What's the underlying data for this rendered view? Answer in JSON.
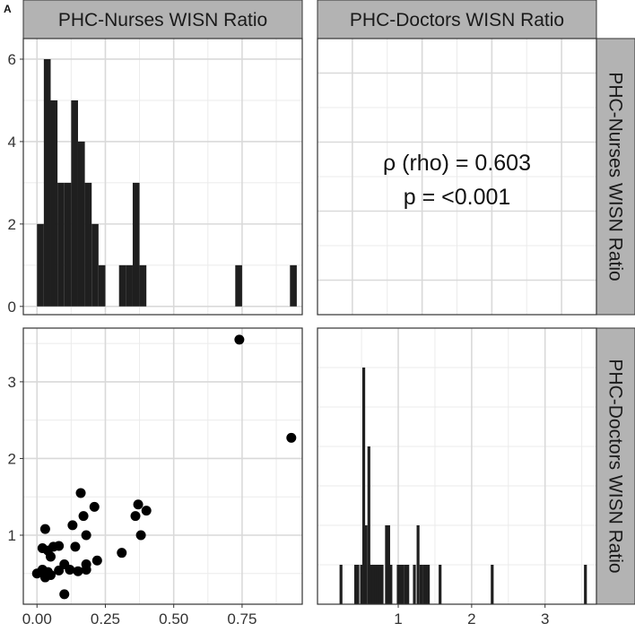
{
  "panel_label": "A",
  "strips": {
    "col1": "PHC-Nurses WISN Ratio",
    "col2": "PHC-Doctors WISN Ratio",
    "row1": "PHC-Nurses WISN Ratio",
    "row2": "PHC-Doctors WISN Ratio"
  },
  "annotation": {
    "rho_label": "ρ (rho) =  0.603",
    "p_label": "p =  <0.001"
  },
  "colors": {
    "bar": "#1f1f1f",
    "point": "#000000",
    "strip_fill": "#b3b3b3",
    "grid": "#d9d9d9",
    "border": "#333333"
  },
  "chart_data": [
    {
      "panel": "top-left",
      "type": "bar",
      "x_ticks": [
        "0.00",
        "0.25",
        "0.50",
        "0.75"
      ],
      "y_ticks": [
        "0",
        "2",
        "4",
        "6"
      ],
      "xlim": [
        -0.05,
        0.97
      ],
      "ylim": [
        -0.2,
        6.5
      ],
      "bins": [
        {
          "x0": 0.0,
          "x1": 0.025,
          "count": 2
        },
        {
          "x0": 0.025,
          "x1": 0.05,
          "count": 6
        },
        {
          "x0": 0.05,
          "x1": 0.075,
          "count": 5
        },
        {
          "x0": 0.075,
          "x1": 0.1,
          "count": 3
        },
        {
          "x0": 0.1,
          "x1": 0.125,
          "count": 3
        },
        {
          "x0": 0.125,
          "x1": 0.15,
          "count": 5
        },
        {
          "x0": 0.15,
          "x1": 0.175,
          "count": 4
        },
        {
          "x0": 0.175,
          "x1": 0.2,
          "count": 3
        },
        {
          "x0": 0.2,
          "x1": 0.225,
          "count": 2
        },
        {
          "x0": 0.225,
          "x1": 0.25,
          "count": 1
        },
        {
          "x0": 0.25,
          "x1": 0.275,
          "count": 0
        },
        {
          "x0": 0.275,
          "x1": 0.3,
          "count": 0
        },
        {
          "x0": 0.3,
          "x1": 0.325,
          "count": 1
        },
        {
          "x0": 0.325,
          "x1": 0.35,
          "count": 1
        },
        {
          "x0": 0.35,
          "x1": 0.375,
          "count": 3
        },
        {
          "x0": 0.375,
          "x1": 0.4,
          "count": 1
        },
        {
          "x0": 0.725,
          "x1": 0.75,
          "count": 1
        },
        {
          "x0": 0.925,
          "x1": 0.95,
          "count": 1
        }
      ]
    },
    {
      "panel": "top-right",
      "type": "table",
      "rho": 0.603,
      "p": "<0.001"
    },
    {
      "panel": "bottom-left",
      "type": "scatter",
      "xlabel": "PHC-Nurses WISN Ratio",
      "ylabel": "PHC-Doctors WISN Ratio",
      "x_ticks": [
        "0.00",
        "0.25",
        "0.50",
        "0.75"
      ],
      "y_ticks": [
        "1",
        "2",
        "3"
      ],
      "xlim": [
        -0.05,
        0.97
      ],
      "ylim": [
        0.1,
        3.7
      ],
      "points": [
        [
          0.74,
          3.55
        ],
        [
          0.93,
          2.27
        ],
        [
          0.16,
          1.55
        ],
        [
          0.37,
          1.4
        ],
        [
          0.4,
          1.32
        ],
        [
          0.21,
          1.37
        ],
        [
          0.36,
          1.25
        ],
        [
          0.17,
          1.25
        ],
        [
          0.13,
          1.13
        ],
        [
          0.03,
          1.08
        ],
        [
          0.38,
          1.0
        ],
        [
          0.18,
          1.0
        ],
        [
          0.02,
          0.83
        ],
        [
          0.06,
          0.85
        ],
        [
          0.08,
          0.86
        ],
        [
          0.04,
          0.8
        ],
        [
          0.14,
          0.85
        ],
        [
          0.31,
          0.77
        ],
        [
          0.05,
          0.72
        ],
        [
          0.22,
          0.67
        ],
        [
          0.18,
          0.62
        ],
        [
          0.1,
          0.62
        ],
        [
          0.02,
          0.55
        ],
        [
          0.04,
          0.52
        ],
        [
          0.08,
          0.54
        ],
        [
          0.12,
          0.55
        ],
        [
          0.0,
          0.5
        ],
        [
          0.03,
          0.45
        ],
        [
          0.15,
          0.53
        ],
        [
          0.18,
          0.55
        ],
        [
          0.05,
          0.48
        ],
        [
          0.1,
          0.23
        ]
      ]
    },
    {
      "panel": "bottom-right",
      "type": "bar",
      "x_ticks": [
        "1",
        "2",
        "3"
      ],
      "xlim": [
        -0.1,
        3.7
      ],
      "bars": [
        {
          "x": 0.22,
          "height": 1
        },
        {
          "x": 0.42,
          "height": 1
        },
        {
          "x": 0.45,
          "height": 1
        },
        {
          "x": 0.5,
          "height": 1
        },
        {
          "x": 0.53,
          "height": 6
        },
        {
          "x": 0.56,
          "height": 2
        },
        {
          "x": 0.6,
          "height": 4
        },
        {
          "x": 0.63,
          "height": 1
        },
        {
          "x": 0.66,
          "height": 1
        },
        {
          "x": 0.69,
          "height": 1
        },
        {
          "x": 0.72,
          "height": 1
        },
        {
          "x": 0.75,
          "height": 1
        },
        {
          "x": 0.78,
          "height": 1
        },
        {
          "x": 0.84,
          "height": 2
        },
        {
          "x": 0.87,
          "height": 2
        },
        {
          "x": 0.9,
          "height": 1
        },
        {
          "x": 1.0,
          "height": 1
        },
        {
          "x": 1.03,
          "height": 1
        },
        {
          "x": 1.06,
          "height": 1
        },
        {
          "x": 1.1,
          "height": 1
        },
        {
          "x": 1.13,
          "height": 1
        },
        {
          "x": 1.22,
          "height": 1
        },
        {
          "x": 1.27,
          "height": 2
        },
        {
          "x": 1.31,
          "height": 1
        },
        {
          "x": 1.35,
          "height": 1
        },
        {
          "x": 1.38,
          "height": 1
        },
        {
          "x": 1.41,
          "height": 1
        },
        {
          "x": 1.57,
          "height": 1
        },
        {
          "x": 2.28,
          "height": 1
        },
        {
          "x": 3.55,
          "height": 1
        }
      ],
      "ylim": [
        0,
        7
      ]
    }
  ]
}
